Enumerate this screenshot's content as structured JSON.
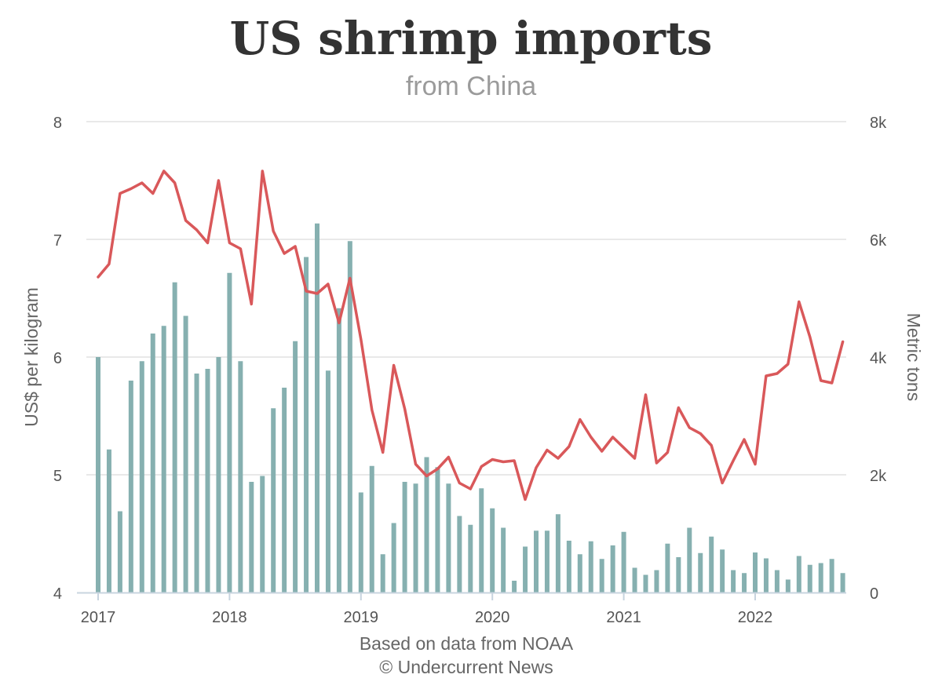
{
  "chart_data": {
    "type": "bar+line",
    "title": "US shrimp imports",
    "subtitle": "from China",
    "caption_source": "Based on data from NOAA",
    "caption_credit": "© Undercurrent News",
    "ylabel_left": "US$ per kilogram",
    "ylabel_right": "Metric tons",
    "y_left_range": [
      4,
      8
    ],
    "y_left_ticks": [
      "4",
      "5",
      "6",
      "7",
      "8"
    ],
    "y_right_range": [
      0,
      8000
    ],
    "y_right_ticks": [
      "0",
      "2k",
      "4k",
      "6k",
      "8k"
    ],
    "x_range": [
      "2017-01",
      "2022-10"
    ],
    "x_ticks": [
      "2017",
      "2018",
      "2019",
      "2020",
      "2021",
      "2022"
    ],
    "grid": "horizontal",
    "colors": {
      "bars": "#86b0b0",
      "line": "#d9585a",
      "grid": "#e2e2e2",
      "axis": "#c8d4df"
    },
    "series": [
      {
        "type": "bar",
        "axis": "right",
        "start_month": "2017-01",
        "values": [
          4000,
          2430,
          1380,
          3600,
          3930,
          4400,
          4530,
          5270,
          4700,
          3720,
          3800,
          4000,
          5430,
          3930,
          1880,
          1980,
          3130,
          3480,
          4270,
          5700,
          6270,
          3770,
          4830,
          5970,
          1700,
          2150,
          650,
          1180,
          1880,
          1850,
          2300,
          2130,
          1850,
          1300,
          1150,
          1770,
          1430,
          1100,
          200,
          780,
          1050,
          1050,
          1330,
          880,
          650,
          870,
          570,
          800,
          1030,
          420,
          300,
          380,
          830,
          600,
          1100,
          670,
          950,
          730,
          380,
          330,
          680,
          580,
          380,
          220,
          620,
          470,
          500,
          570,
          330
        ]
      },
      {
        "type": "line",
        "axis": "left",
        "start_month": "2017-01",
        "values": [
          6.68,
          6.79,
          7.39,
          7.43,
          7.48,
          7.39,
          7.58,
          7.48,
          7.16,
          7.08,
          6.97,
          7.5,
          6.97,
          6.92,
          6.45,
          7.58,
          7.07,
          6.88,
          6.94,
          6.56,
          6.54,
          6.62,
          6.29,
          6.67,
          6.15,
          5.55,
          5.19,
          5.93,
          5.56,
          5.09,
          4.99,
          5.05,
          5.15,
          4.93,
          4.88,
          5.07,
          5.13,
          5.11,
          5.12,
          4.79,
          5.06,
          5.21,
          5.14,
          5.24,
          5.47,
          5.32,
          5.2,
          5.32,
          5.23,
          5.14,
          5.68,
          5.1,
          5.19,
          5.57,
          5.4,
          5.35,
          5.25,
          4.93,
          5.12,
          5.3,
          5.09,
          5.84,
          5.86,
          5.94,
          6.47,
          6.17,
          5.8,
          5.78,
          6.13
        ]
      }
    ]
  }
}
